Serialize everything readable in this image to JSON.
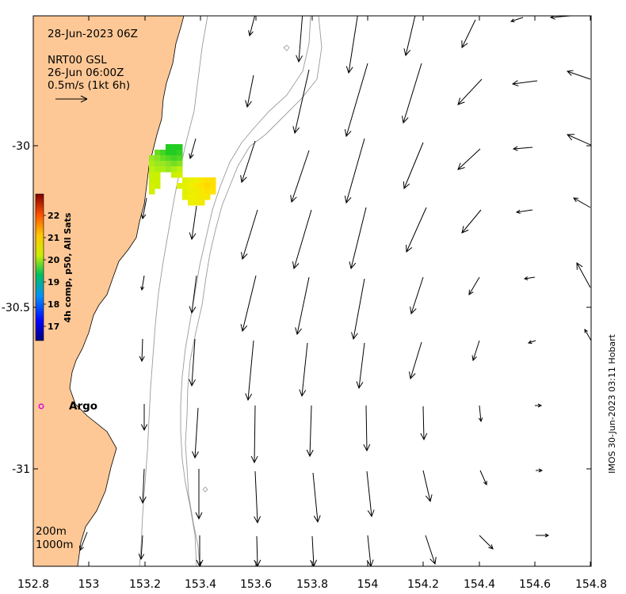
{
  "map": {
    "date_title": "28-Jun-2023 06Z",
    "product": "NRT00 GSL",
    "product_time": "26-Jun 06:00Z",
    "velocity_scale": "0.5m/s (1kt 6h)",
    "argo_label": "Argo",
    "isobath_labels": [
      "200m",
      "1000m"
    ],
    "credit": "IMOS 30-Jun-2023 03:11 Hobart",
    "lon_ticks": [
      "152.8",
      "153",
      "153.2",
      "153.4",
      "153.6",
      "153.8",
      "154",
      "154.2",
      "154.4",
      "154.6",
      "154.8"
    ],
    "lat_ticks": [
      "-30",
      "-30.5",
      "-31"
    ],
    "colorbar": {
      "title": "4h comp, p50, All Sats",
      "ticks": [
        "22",
        "21",
        "20",
        "19",
        "18",
        "17"
      ],
      "range": [
        16.5,
        23
      ]
    },
    "colors": {
      "land": "#fdc896",
      "contour": "#9a9a9a",
      "argo": "#e000e0",
      "arrow": "#000000"
    }
  }
}
